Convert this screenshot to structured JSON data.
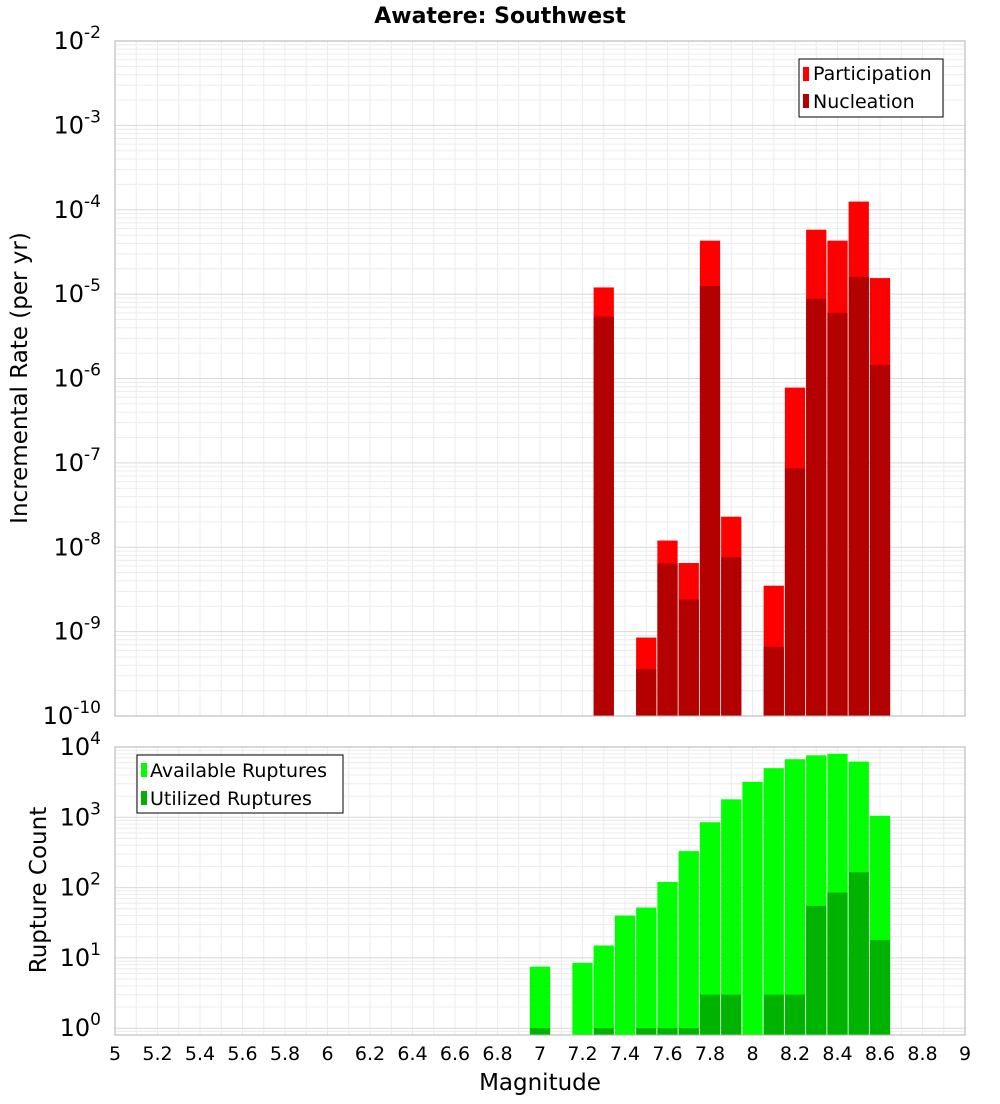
{
  "chart_data": [
    {
      "type": "bar",
      "title": "Awatere: Southwest",
      "ylabel": "Incremental Rate (per yr)",
      "xlabel": "",
      "xlim": [
        5,
        9
      ],
      "yscale": "log",
      "ylim": [
        1e-10,
        0.01
      ],
      "yticks_exp": [
        -10,
        -9,
        -8,
        -7,
        -6,
        -5,
        -4,
        -3,
        -2
      ],
      "grid": true,
      "legend": "top-right",
      "bar_width": 0.1,
      "series": [
        {
          "name": "Participation",
          "color": "#ff0000",
          "points": [
            {
              "x": 7.3,
              "y": 1.2e-05
            },
            {
              "x": 7.5,
              "y": 8.5e-10
            },
            {
              "x": 7.6,
              "y": 1.2e-08
            },
            {
              "x": 7.7,
              "y": 6.5e-09
            },
            {
              "x": 7.8,
              "y": 4.3e-05
            },
            {
              "x": 7.9,
              "y": 2.3e-08
            },
            {
              "x": 8.1,
              "y": 3.5e-09
            },
            {
              "x": 8.2,
              "y": 7.8e-07
            },
            {
              "x": 8.3,
              "y": 5.8e-05
            },
            {
              "x": 8.4,
              "y": 4.3e-05
            },
            {
              "x": 8.5,
              "y": 0.000125
            },
            {
              "x": 8.6,
              "y": 1.55e-05
            }
          ]
        },
        {
          "name": "Nucleation",
          "color": "#b30000",
          "points": [
            {
              "x": 7.3,
              "y": 5.4e-06
            },
            {
              "x": 7.5,
              "y": 3.6e-10
            },
            {
              "x": 7.6,
              "y": 6.4e-09
            },
            {
              "x": 7.7,
              "y": 2.4e-09
            },
            {
              "x": 7.8,
              "y": 1.25e-05
            },
            {
              "x": 7.9,
              "y": 7.6e-09
            },
            {
              "x": 8.1,
              "y": 6.6e-10
            },
            {
              "x": 8.2,
              "y": 8.6e-08
            },
            {
              "x": 8.3,
              "y": 8.8e-06
            },
            {
              "x": 8.4,
              "y": 6e-06
            },
            {
              "x": 8.5,
              "y": 1.6e-05
            },
            {
              "x": 8.6,
              "y": 1.45e-06
            }
          ]
        }
      ]
    },
    {
      "type": "bar",
      "title": "",
      "ylabel": "Rupture Count",
      "xlabel": "Magnitude",
      "xlim": [
        5,
        9
      ],
      "xticks": [
        "5",
        "5.2",
        "5.4",
        "5.6",
        "5.8",
        "6",
        "6.2",
        "6.4",
        "6.6",
        "6.8",
        "7",
        "7.2",
        "7.4",
        "7.6",
        "7.8",
        "8",
        "8.2",
        "8.4",
        "8.6",
        "8.8",
        "9"
      ],
      "yscale": "log",
      "ylim": [
        0.8,
        10000
      ],
      "yticks_exp": [
        0,
        1,
        2,
        3,
        4
      ],
      "grid": true,
      "legend": "top-left",
      "bar_width": 0.1,
      "series": [
        {
          "name": "Available Ruptures",
          "color": "#00ff00",
          "points": [
            {
              "x": 7.0,
              "y": 7.5
            },
            {
              "x": 7.2,
              "y": 8.5
            },
            {
              "x": 7.3,
              "y": 15
            },
            {
              "x": 7.4,
              "y": 40
            },
            {
              "x": 7.5,
              "y": 52
            },
            {
              "x": 7.6,
              "y": 120
            },
            {
              "x": 7.7,
              "y": 330
            },
            {
              "x": 7.8,
              "y": 850
            },
            {
              "x": 7.9,
              "y": 1800
            },
            {
              "x": 8.0,
              "y": 3200
            },
            {
              "x": 8.1,
              "y": 5000
            },
            {
              "x": 8.2,
              "y": 6700
            },
            {
              "x": 8.3,
              "y": 7600
            },
            {
              "x": 8.4,
              "y": 8000
            },
            {
              "x": 8.5,
              "y": 6200
            },
            {
              "x": 8.6,
              "y": 1050
            }
          ]
        },
        {
          "name": "Utilized Ruptures",
          "color": "#00b300",
          "points": [
            {
              "x": 7.0,
              "y": 1
            },
            {
              "x": 7.3,
              "y": 1
            },
            {
              "x": 7.5,
              "y": 1
            },
            {
              "x": 7.6,
              "y": 1
            },
            {
              "x": 7.7,
              "y": 1
            },
            {
              "x": 7.8,
              "y": 3
            },
            {
              "x": 7.9,
              "y": 3
            },
            {
              "x": 8.1,
              "y": 3
            },
            {
              "x": 8.2,
              "y": 3
            },
            {
              "x": 8.3,
              "y": 55
            },
            {
              "x": 8.4,
              "y": 85
            },
            {
              "x": 8.5,
              "y": 165
            },
            {
              "x": 8.6,
              "y": 18
            }
          ]
        }
      ]
    }
  ]
}
